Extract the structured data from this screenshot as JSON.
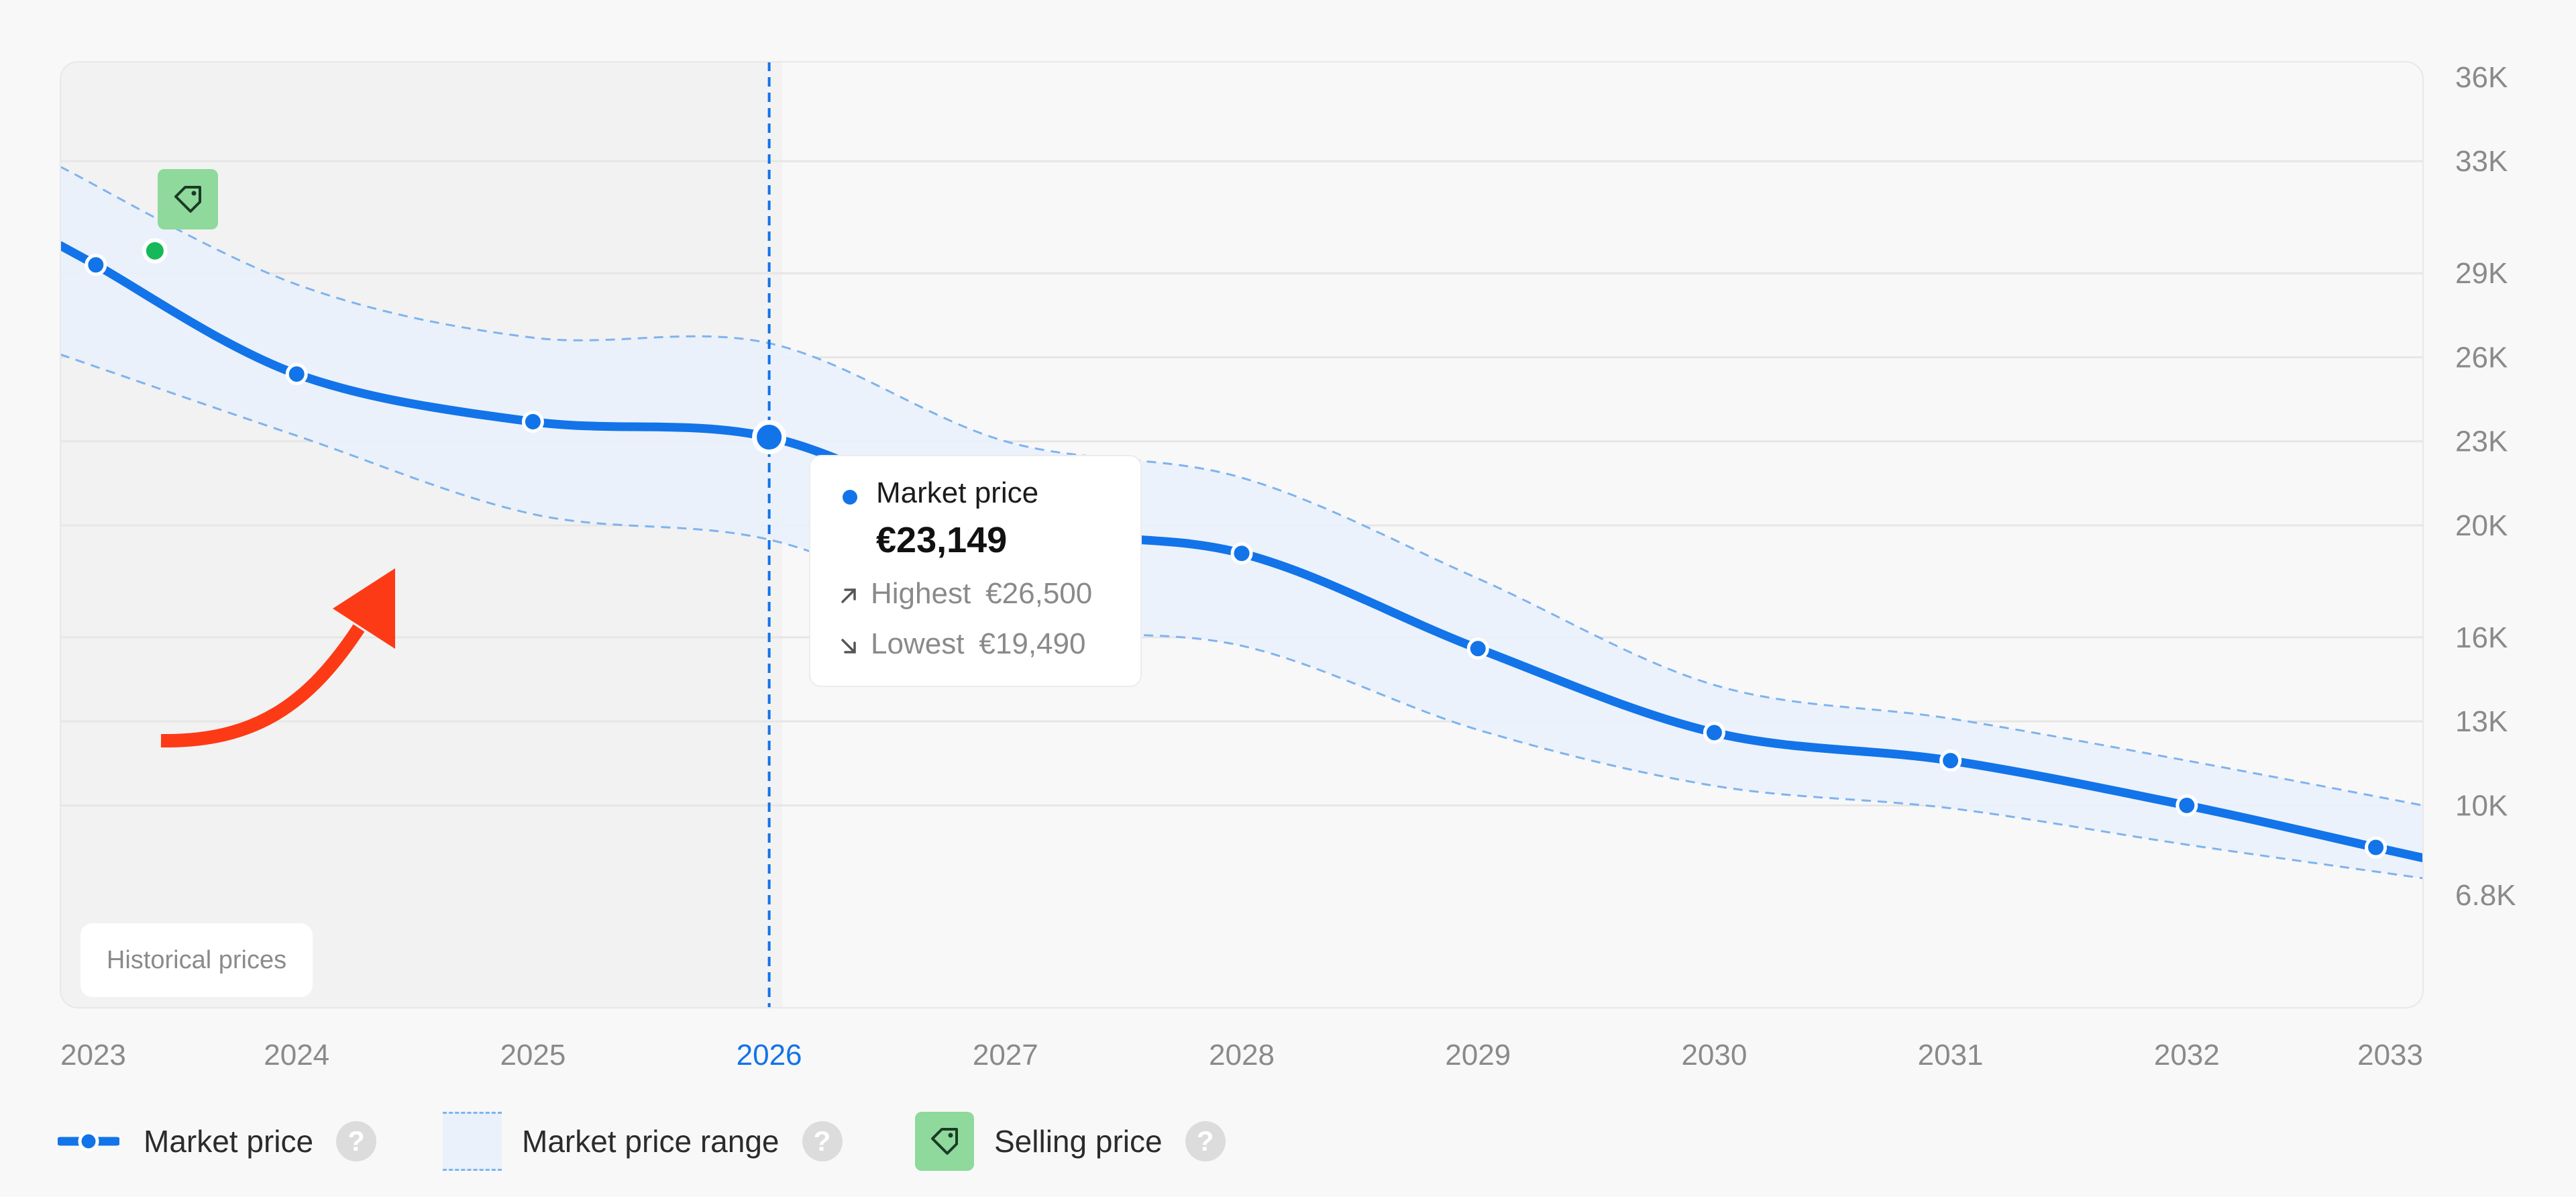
{
  "chart_data": {
    "type": "line",
    "x": [
      "2023",
      "2024",
      "2025",
      "2026",
      "2027",
      "2028",
      "2029",
      "2030",
      "2031",
      "2032",
      "2033"
    ],
    "y_ticks": [
      "36K",
      "33K",
      "29K",
      "26K",
      "23K",
      "20K",
      "16K",
      "13K",
      "10K",
      "6.8K"
    ],
    "ylim": [
      6800,
      36000
    ],
    "series": [
      {
        "name": "Market price",
        "points": [
          {
            "x": 2023.15,
            "y": 29300
          },
          {
            "x": 2024,
            "y": 25400
          },
          {
            "x": 2025,
            "y": 23700
          },
          {
            "x": 2026,
            "y": 23149
          },
          {
            "x": 2027,
            "y": 20000
          },
          {
            "x": 2028,
            "y": 19000
          },
          {
            "x": 2029,
            "y": 15600
          },
          {
            "x": 2030,
            "y": 12600
          },
          {
            "x": 2031,
            "y": 11600
          },
          {
            "x": 2032,
            "y": 10000
          },
          {
            "x": 2032.8,
            "y": 8500
          }
        ]
      }
    ],
    "range_upper": [
      {
        "x": 2023,
        "y": 32800
      },
      {
        "x": 2024,
        "y": 28600
      },
      {
        "x": 2025,
        "y": 26700
      },
      {
        "x": 2026,
        "y": 26500
      },
      {
        "x": 2027,
        "y": 23000
      },
      {
        "x": 2028,
        "y": 21700
      },
      {
        "x": 2029,
        "y": 18100
      },
      {
        "x": 2030,
        "y": 14300
      },
      {
        "x": 2031,
        "y": 13100
      },
      {
        "x": 2032,
        "y": 11600
      },
      {
        "x": 2033,
        "y": 10000
      }
    ],
    "range_lower": [
      {
        "x": 2023,
        "y": 26100
      },
      {
        "x": 2024,
        "y": 23200
      },
      {
        "x": 2025,
        "y": 20400
      },
      {
        "x": 2026,
        "y": 19490
      },
      {
        "x": 2027,
        "y": 16500
      },
      {
        "x": 2028,
        "y": 15700
      },
      {
        "x": 2029,
        "y": 12700
      },
      {
        "x": 2030,
        "y": 10700
      },
      {
        "x": 2031,
        "y": 9900
      },
      {
        "x": 2032,
        "y": 8600
      },
      {
        "x": 2033,
        "y": 7400
      }
    ],
    "selling_price_point": {
      "x": 2023.4,
      "y": 29800
    },
    "highlight_year": "2026",
    "tooltip": {
      "title": "Market price",
      "value": "€23,149",
      "highest_label": "Highest",
      "highest_value": "€26,500",
      "lowest_label": "Lowest",
      "lowest_value": "€19,490"
    },
    "historical_label": "Historical prices",
    "legend": [
      {
        "label": "Market price",
        "help": "?"
      },
      {
        "label": "Market price range",
        "help": "?"
      },
      {
        "label": "Selling price",
        "help": "?"
      }
    ],
    "colors": {
      "line": "#1274e8",
      "range_fill": "#eaf1fb",
      "range_stroke": "#7fb3ee",
      "historical_bg": "#f2f2f2",
      "plot_bg": "#f8f8f8",
      "selling_marker": "#8ed99b",
      "selling_dot": "#16b85a",
      "arrow": "#fd3a16",
      "highlight_tick": "#1274e8"
    }
  }
}
